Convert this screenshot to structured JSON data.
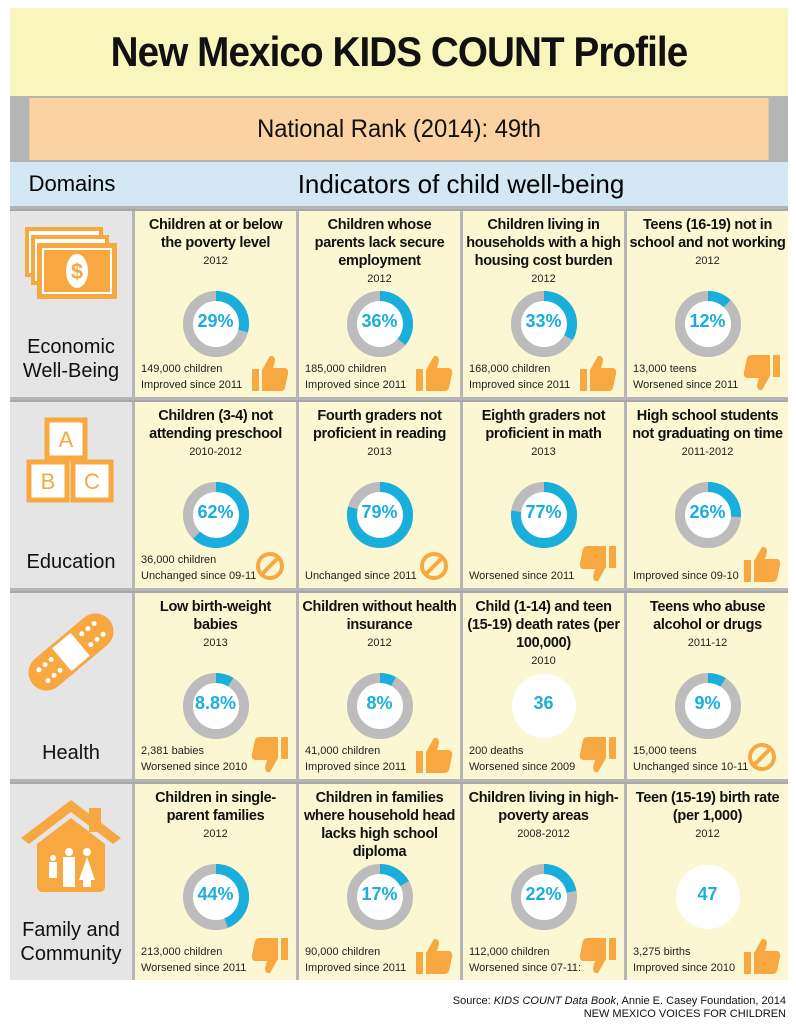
{
  "title": "New Mexico KIDS COUNT Profile",
  "rank": "National Rank (2014): 49th",
  "header": {
    "domains": "Domains",
    "indicators": "Indicators of child well-being"
  },
  "colors": {
    "accent": "#1aaedc",
    "orange": "#f7a840",
    "ring": "#bcbcbc"
  },
  "rows": [
    {
      "domain": "Economic Well-Being",
      "icon": "money-icon",
      "cells": [
        {
          "title": "Children at or below the poverty level",
          "year": "2012",
          "value": "29%",
          "pct": 0.29,
          "count": "149,000 children",
          "trend": "Improved since 2011",
          "trend_icon": "thumbs-up"
        },
        {
          "title": "Children whose parents lack secure employment",
          "year": "2012",
          "value": "36%",
          "pct": 0.36,
          "count": "185,000 children",
          "trend": "Improved since 2011",
          "trend_icon": "thumbs-up"
        },
        {
          "title": "Children living in households with a high housing cost burden",
          "year": "2012",
          "value": "33%",
          "pct": 0.33,
          "count": "168,000 children",
          "trend": "Improved since 2011",
          "trend_icon": "thumbs-up"
        },
        {
          "title": "Teens (16-19) not in school and not working",
          "year": "2012",
          "value": "12%",
          "pct": 0.12,
          "count": "13,000 teens",
          "trend": "Worsened since 2011",
          "trend_icon": "thumbs-down"
        }
      ]
    },
    {
      "domain": "Education",
      "icon": "abc-blocks-icon",
      "cells": [
        {
          "title": "Children (3-4) not attending preschool",
          "year": "2010-2012",
          "value": "62%",
          "pct": 0.62,
          "count": "36,000 children",
          "trend": "Unchanged since 09-11",
          "trend_icon": "no-change"
        },
        {
          "title": "Fourth graders not proficient in reading",
          "year": "2013",
          "value": "79%",
          "pct": 0.79,
          "count": null,
          "trend": "Unchanged since 2011",
          "trend_icon": "no-change"
        },
        {
          "title": "Eighth graders not proficient in math",
          "year": "2013",
          "value": "77%",
          "pct": 0.77,
          "count": null,
          "trend": "Worsened since 2011",
          "trend_icon": "thumbs-down"
        },
        {
          "title": "High school students not graduating on time",
          "year": "2011-2012",
          "value": "26%",
          "pct": 0.26,
          "count": null,
          "trend": "Improved since 09-10",
          "trend_icon": "thumbs-up"
        }
      ]
    },
    {
      "domain": "Health",
      "icon": "bandage-icon",
      "cells": [
        {
          "title": "Low birth-weight babies",
          "year": "2013",
          "value": "8.8%",
          "pct": 0.088,
          "count": "2,381 babies",
          "trend": "Worsened since 2010",
          "trend_icon": "thumbs-down"
        },
        {
          "title": "Children without health insurance",
          "year": "2012",
          "value": "8%",
          "pct": 0.08,
          "count": "41,000 children",
          "trend": "Improved since 2011",
          "trend_icon": "thumbs-up"
        },
        {
          "title": "Child (1-14) and teen (15-19) death rates (per 100,000)",
          "year": "2010",
          "value": "36",
          "pct": null,
          "count": "200 deaths",
          "trend": "Worsened since 2009",
          "trend_icon": "thumbs-down"
        },
        {
          "title": "Teens who abuse alcohol or drugs",
          "year": "2011-12",
          "value": "9%",
          "pct": 0.09,
          "count": "15,000 teens",
          "trend": "Unchanged since 10-11",
          "trend_icon": "no-change"
        }
      ]
    },
    {
      "domain": "Family and Community",
      "icon": "house-family-icon",
      "cells": [
        {
          "title": "Children in single-parent families",
          "year": "2012",
          "value": "44%",
          "pct": 0.44,
          "count": "213,000 children",
          "trend": "Worsened since 2011",
          "trend_icon": "thumbs-down"
        },
        {
          "title": "Children in families where household head lacks high school diploma",
          "year": "2012",
          "value": "17%",
          "pct": 0.17,
          "count": "90,000 children",
          "trend": "Improved since 2011",
          "trend_icon": "thumbs-up"
        },
        {
          "title": "Children living in high-poverty areas",
          "year": "2008-2012",
          "value": "22%",
          "pct": 0.22,
          "count": "112,000 children",
          "trend": "Worsened since 07-11:",
          "trend_icon": "thumbs-down"
        },
        {
          "title": "Teen (15-19) birth rate (per 1,000)",
          "year": "2012",
          "value": "47",
          "pct": null,
          "count": "3,275 births",
          "trend": "Improved since 2010",
          "trend_icon": "thumbs-up"
        }
      ]
    }
  ],
  "source": {
    "prefix": "Source:  ",
    "book": "KIDS COUNT Data Book",
    "rest": ", Annie E. Casey Foundation, 2014",
    "org": "NEW MEXICO VOICES FOR CHILDREN"
  }
}
